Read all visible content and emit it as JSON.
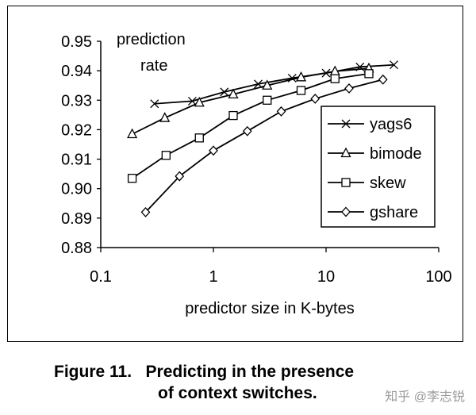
{
  "chart_data": {
    "type": "line",
    "title": "",
    "xlabel": "predictor size in K-bytes",
    "ylabel": "prediction rate",
    "x_scale": "log",
    "xlim": [
      0.1,
      100
    ],
    "ylim": [
      0.88,
      0.95
    ],
    "x_ticks": [
      "0.1",
      "1",
      "10",
      "100"
    ],
    "y_ticks": [
      "0.88",
      "0.89",
      "0.90",
      "0.91",
      "0.92",
      "0.93",
      "0.94",
      "0.95"
    ],
    "grid": false,
    "legend_position": "right",
    "series": [
      {
        "name": "yags6",
        "marker": "x",
        "x": [
          0.3,
          0.65,
          1.25,
          2.5,
          5,
          10,
          20,
          40
        ],
        "y": [
          0.9288,
          0.9297,
          0.9328,
          0.9355,
          0.9375,
          0.9392,
          0.9413,
          0.942
        ]
      },
      {
        "name": "bimode",
        "marker": "triangle",
        "x": [
          0.19,
          0.37,
          0.75,
          1.5,
          3,
          6,
          12,
          24
        ],
        "y": [
          0.9185,
          0.924,
          0.9292,
          0.932,
          0.935,
          0.9378,
          0.9398,
          0.9408
        ]
      },
      {
        "name": "skew",
        "marker": "square",
        "x": [
          0.19,
          0.38,
          0.75,
          1.5,
          3,
          6,
          12,
          24
        ],
        "y": [
          0.9035,
          0.9113,
          0.9172,
          0.9248,
          0.93,
          0.9333,
          0.9373,
          0.939
        ]
      },
      {
        "name": "gshare",
        "marker": "diamond",
        "x": [
          0.25,
          0.5,
          1,
          2,
          4,
          8,
          16,
          32
        ],
        "y": [
          0.892,
          0.9042,
          0.9129,
          0.9195,
          0.9262,
          0.9305,
          0.934,
          0.937
        ]
      }
    ]
  },
  "ylabel_lines": [
    "prediction",
    "rate"
  ],
  "caption": {
    "line1": "Figure 11.   Predicting in the presence",
    "line2": "of context switches."
  },
  "watermark": "知乎 @李志锐"
}
